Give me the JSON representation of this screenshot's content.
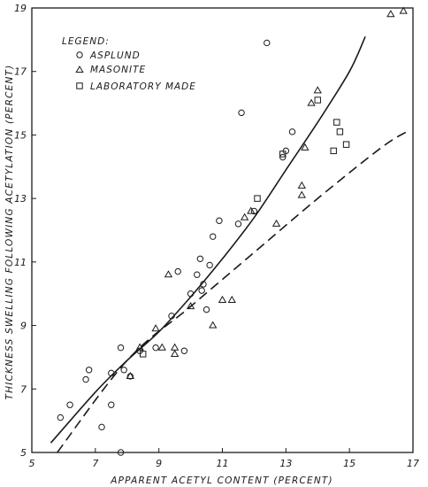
{
  "chart_data": {
    "type": "scatter",
    "xlabel": "APPARENT ACETYL CONTENT (PERCENT)",
    "ylabel": "THICKNESS SWELLING FOLLOWING ACETYLATION (PERCENT)",
    "xlim": [
      5,
      17
    ],
    "ylim": [
      5,
      19
    ],
    "x_ticks": [
      5,
      7,
      9,
      11,
      13,
      15,
      17
    ],
    "y_ticks": [
      5,
      7,
      9,
      11,
      13,
      15,
      17,
      19
    ],
    "grid": false,
    "legend_title": "LEGEND:",
    "legend_position": "top-left",
    "series": [
      {
        "name": "ASPLUND",
        "marker": "circle",
        "points": [
          [
            5.9,
            6.1
          ],
          [
            6.2,
            6.5
          ],
          [
            6.7,
            7.3
          ],
          [
            6.8,
            7.6
          ],
          [
            7.2,
            5.8
          ],
          [
            7.5,
            7.5
          ],
          [
            7.8,
            8.3
          ],
          [
            7.9,
            7.6
          ],
          [
            8.1,
            7.4
          ],
          [
            7.5,
            6.5
          ],
          [
            7.8,
            5.0
          ],
          [
            8.4,
            8.2
          ],
          [
            8.9,
            8.3
          ],
          [
            9.4,
            9.3
          ],
          [
            9.6,
            10.7
          ],
          [
            9.8,
            8.2
          ],
          [
            10.0,
            10.0
          ],
          [
            10.2,
            10.6
          ],
          [
            10.3,
            11.1
          ],
          [
            10.35,
            10.1
          ],
          [
            10.4,
            10.3
          ],
          [
            10.5,
            9.5
          ],
          [
            10.6,
            10.9
          ],
          [
            10.7,
            11.8
          ],
          [
            10.9,
            12.3
          ],
          [
            11.5,
            12.2
          ],
          [
            12.0,
            12.6
          ],
          [
            11.6,
            15.7
          ],
          [
            12.4,
            17.9
          ],
          [
            12.9,
            14.3
          ],
          [
            13.0,
            14.5
          ],
          [
            13.2,
            15.1
          ]
        ]
      },
      {
        "name": "MASONITE",
        "marker": "triangle",
        "points": [
          [
            8.1,
            7.4
          ],
          [
            8.4,
            8.3
          ],
          [
            8.9,
            8.9
          ],
          [
            9.1,
            8.3
          ],
          [
            9.3,
            10.6
          ],
          [
            9.5,
            8.1
          ],
          [
            9.5,
            8.3
          ],
          [
            10.0,
            9.6
          ],
          [
            10.7,
            9.0
          ],
          [
            11.0,
            9.8
          ],
          [
            11.3,
            9.8
          ],
          [
            11.7,
            12.4
          ],
          [
            11.9,
            12.6
          ],
          [
            12.7,
            12.2
          ],
          [
            13.5,
            13.1
          ],
          [
            13.5,
            13.4
          ],
          [
            13.6,
            14.6
          ],
          [
            13.8,
            16.0
          ],
          [
            14.0,
            16.4
          ],
          [
            16.3,
            18.8
          ],
          [
            16.7,
            18.9
          ]
        ]
      },
      {
        "name": "LABORATORY MADE",
        "marker": "square",
        "points": [
          [
            8.5,
            8.1
          ],
          [
            12.1,
            13.0
          ],
          [
            12.9,
            14.4
          ],
          [
            14.0,
            16.1
          ],
          [
            14.5,
            14.5
          ],
          [
            14.6,
            15.4
          ],
          [
            14.7,
            15.1
          ],
          [
            14.9,
            14.7
          ]
        ]
      }
    ],
    "curves": [
      {
        "style": "solid",
        "points": [
          [
            5.6,
            5.3
          ],
          [
            7.0,
            6.9
          ],
          [
            8.0,
            7.9
          ],
          [
            9.0,
            8.8
          ],
          [
            10.0,
            9.9
          ],
          [
            11.0,
            11.1
          ],
          [
            12.0,
            12.4
          ],
          [
            13.0,
            13.9
          ],
          [
            14.0,
            15.4
          ],
          [
            15.0,
            17.0
          ],
          [
            15.5,
            18.1
          ]
        ]
      },
      {
        "style": "dashed",
        "points": [
          [
            5.8,
            5.0
          ],
          [
            8.0,
            7.9
          ],
          [
            10.0,
            9.6
          ],
          [
            12.0,
            11.3
          ],
          [
            14.0,
            13.0
          ],
          [
            16.0,
            14.6
          ],
          [
            16.8,
            15.1
          ]
        ]
      }
    ]
  }
}
